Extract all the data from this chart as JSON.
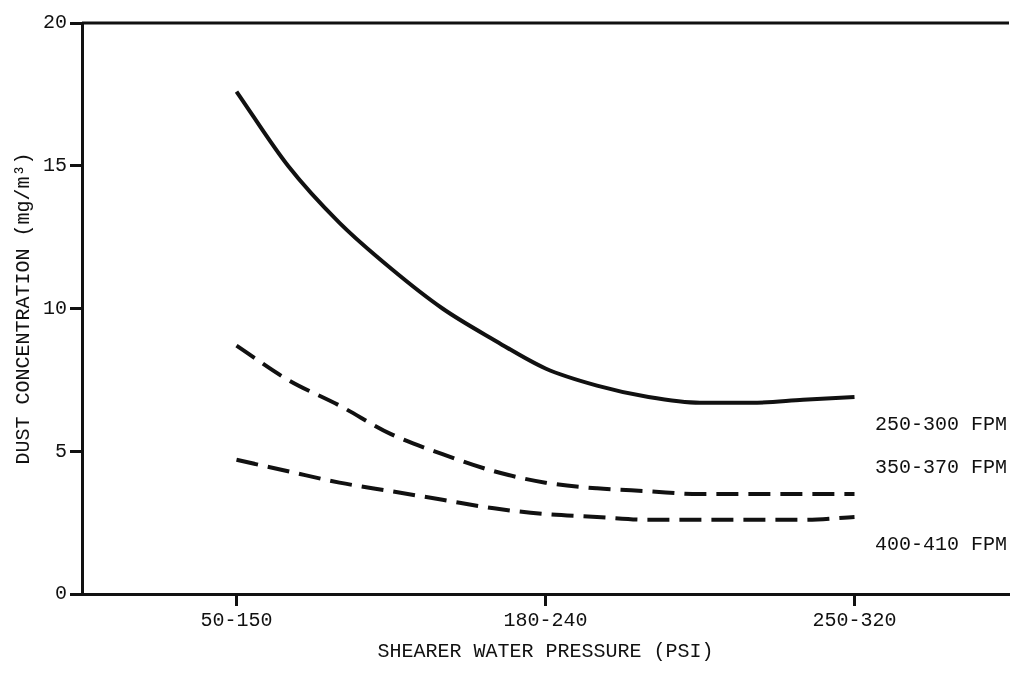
{
  "chart_data": {
    "type": "line",
    "xlabel": "SHEARER WATER PRESSURE (PSI)",
    "ylabel": "DUST CONCENTRATION (mg/m³)",
    "categories": [
      null,
      null,
      null,
      "50-150",
      null,
      null,
      null,
      null,
      null,
      "180-240",
      null,
      null,
      null,
      null,
      null,
      "250-320",
      null,
      null,
      null
    ],
    "ylim": [
      0,
      20
    ],
    "yticks": [
      0,
      5,
      10,
      15,
      20
    ],
    "grid": false,
    "legend": false,
    "marker": "none",
    "series": [
      {
        "name": "250-300 FPM",
        "color": "#111111",
        "line_style": "solid",
        "values": [
          null,
          null,
          null,
          17.6,
          15.0,
          13.0,
          11.4,
          10.0,
          8.9,
          7.9,
          7.3,
          6.9,
          6.7,
          6.7,
          6.8,
          6.9,
          null,
          null,
          null
        ]
      },
      {
        "name": "350-370 FPM",
        "color": "#111111",
        "line_style": "dashed",
        "values": [
          null,
          null,
          null,
          8.7,
          7.5,
          6.6,
          5.6,
          4.9,
          4.3,
          3.9,
          3.7,
          3.6,
          3.5,
          3.5,
          3.5,
          3.5,
          null,
          null,
          null
        ]
      },
      {
        "name": "400-410 FPM",
        "color": "#111111",
        "line_style": "dashed",
        "values": [
          null,
          null,
          null,
          4.7,
          4.3,
          3.9,
          3.6,
          3.3,
          3.0,
          2.8,
          2.7,
          2.6,
          2.6,
          2.6,
          2.6,
          2.7,
          null,
          null,
          null
        ]
      }
    ]
  }
}
